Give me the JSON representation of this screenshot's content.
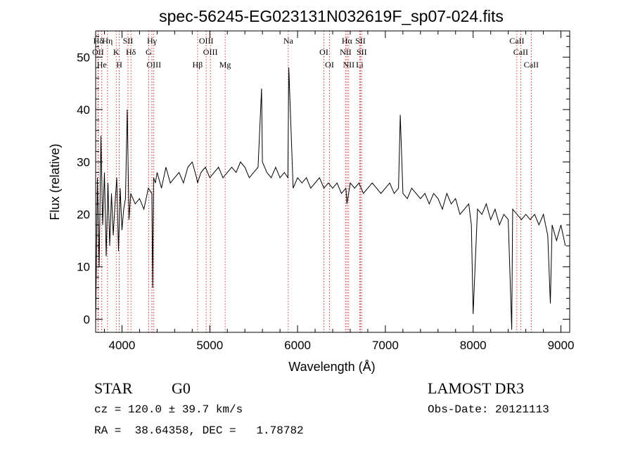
{
  "chart_data": {
    "type": "line",
    "title": "spec-56245-EG023131N032619F_sp07-024.fits",
    "xlabel": "Wavelength (Å)",
    "ylabel": "Flux (relative)",
    "xlim": [
      3700,
      9100
    ],
    "ylim": [
      -2.5,
      55
    ],
    "xticks": [
      4000,
      5000,
      6000,
      7000,
      8000,
      9000
    ],
    "yticks": [
      0,
      10,
      20,
      30,
      40,
      50
    ],
    "grid": false,
    "spectrum": {
      "x": [
        3700,
        3720,
        3740,
        3760,
        3780,
        3800,
        3820,
        3840,
        3860,
        3880,
        3900,
        3920,
        3940,
        3960,
        3980,
        4000,
        4020,
        4040,
        4060,
        4080,
        4100,
        4150,
        4200,
        4250,
        4300,
        4340,
        4350,
        4360,
        4380,
        4400,
        4450,
        4500,
        4550,
        4600,
        4650,
        4700,
        4750,
        4800,
        4850,
        4861,
        4900,
        4950,
        5000,
        5050,
        5100,
        5150,
        5200,
        5250,
        5300,
        5350,
        5400,
        5450,
        5500,
        5550,
        5590,
        5600,
        5650,
        5700,
        5750,
        5800,
        5850,
        5890,
        5900,
        5950,
        6000,
        6050,
        6100,
        6150,
        6200,
        6250,
        6300,
        6350,
        6400,
        6450,
        6500,
        6550,
        6563,
        6600,
        6650,
        6700,
        6750,
        6800,
        6850,
        6900,
        6950,
        7000,
        7050,
        7100,
        7150,
        7170,
        7200,
        7250,
        7300,
        7350,
        7400,
        7450,
        7500,
        7550,
        7600,
        7650,
        7700,
        7750,
        7800,
        7850,
        7900,
        7950,
        7980,
        8000,
        8050,
        8100,
        8150,
        8200,
        8250,
        8300,
        8350,
        8400,
        8440,
        8450,
        8500,
        8550,
        8600,
        8650,
        8700,
        8750,
        8800,
        8850,
        8880,
        8900,
        8950,
        9000,
        9050
      ],
      "y": [
        -1,
        27,
        10,
        35,
        18,
        28,
        12,
        26,
        14,
        24,
        16,
        22,
        27,
        13,
        25,
        17,
        21,
        23,
        40,
        19,
        24,
        22,
        23,
        21,
        25,
        24,
        6,
        27,
        26,
        28,
        25,
        29,
        26,
        27,
        28,
        26,
        29,
        30,
        27,
        26,
        28,
        29,
        27,
        28,
        29,
        27,
        28,
        29,
        28,
        30,
        29,
        27,
        28,
        29,
        44,
        30,
        28,
        27,
        29,
        27,
        28,
        27,
        48,
        25,
        27,
        26,
        27,
        25,
        26,
        27,
        25,
        26,
        25,
        26,
        24,
        25,
        22,
        26,
        25,
        26,
        24,
        25,
        26,
        25,
        24,
        25,
        26,
        24,
        25,
        39,
        24,
        23,
        25,
        24,
        23,
        24,
        22,
        24,
        23,
        21,
        24,
        22,
        23,
        20,
        21,
        22,
        18,
        1,
        21,
        20,
        22,
        19,
        21,
        18,
        20,
        19,
        -2,
        21,
        20,
        19,
        20,
        19,
        20,
        18,
        20,
        16,
        3,
        18,
        15,
        18,
        14
      ]
    },
    "line_markers": [
      {
        "label": "Hδ",
        "wave": 3730
      },
      {
        "label": "OII",
        "wave": 3727
      },
      {
        "label": "He",
        "wave": 3770
      },
      {
        "label": "Hη",
        "wave": 3835
      },
      {
        "label": "K",
        "wave": 3934
      },
      {
        "label": "H",
        "wave": 3969
      },
      {
        "label": "SII",
        "wave": 4068
      },
      {
        "label": "Hδ",
        "wave": 4102
      },
      {
        "label": "OIII",
        "wave": 4363
      },
      {
        "label": "Hγ",
        "wave": 4341
      },
      {
        "label": "G",
        "wave": 4304
      },
      {
        "label": "Hβ",
        "wave": 4861
      },
      {
        "label": "OIII",
        "wave": 4959
      },
      {
        "label": "OIII",
        "wave": 5007
      },
      {
        "label": "Mg",
        "wave": 5175
      },
      {
        "label": "Na",
        "wave": 5894
      },
      {
        "label": "OI",
        "wave": 6300
      },
      {
        "label": "OI",
        "wave": 6364
      },
      {
        "label": "Hα",
        "wave": 6563
      },
      {
        "label": "NII",
        "wave": 6548
      },
      {
        "label": "NII",
        "wave": 6583
      },
      {
        "label": "SII",
        "wave": 6716
      },
      {
        "label": "SII",
        "wave": 6731
      },
      {
        "label": "Li",
        "wave": 6708
      },
      {
        "label": "CaII",
        "wave": 8498
      },
      {
        "label": "CaII",
        "wave": 8542
      },
      {
        "label": "CaII",
        "wave": 8662
      }
    ],
    "colors": {
      "spectrum": "#000000",
      "markers": "#cc0000",
      "background": "#ffffff"
    }
  },
  "footer": {
    "class_label": "STAR",
    "subclass_label": "G0",
    "survey_label": "LAMOST DR3",
    "redshift_text": "cz = 120.0 ± 39.7 km/s",
    "obs_date_text": "Obs-Date: 20121113",
    "coords_text": "RA =  38.64358, DEC =   1.78782"
  }
}
